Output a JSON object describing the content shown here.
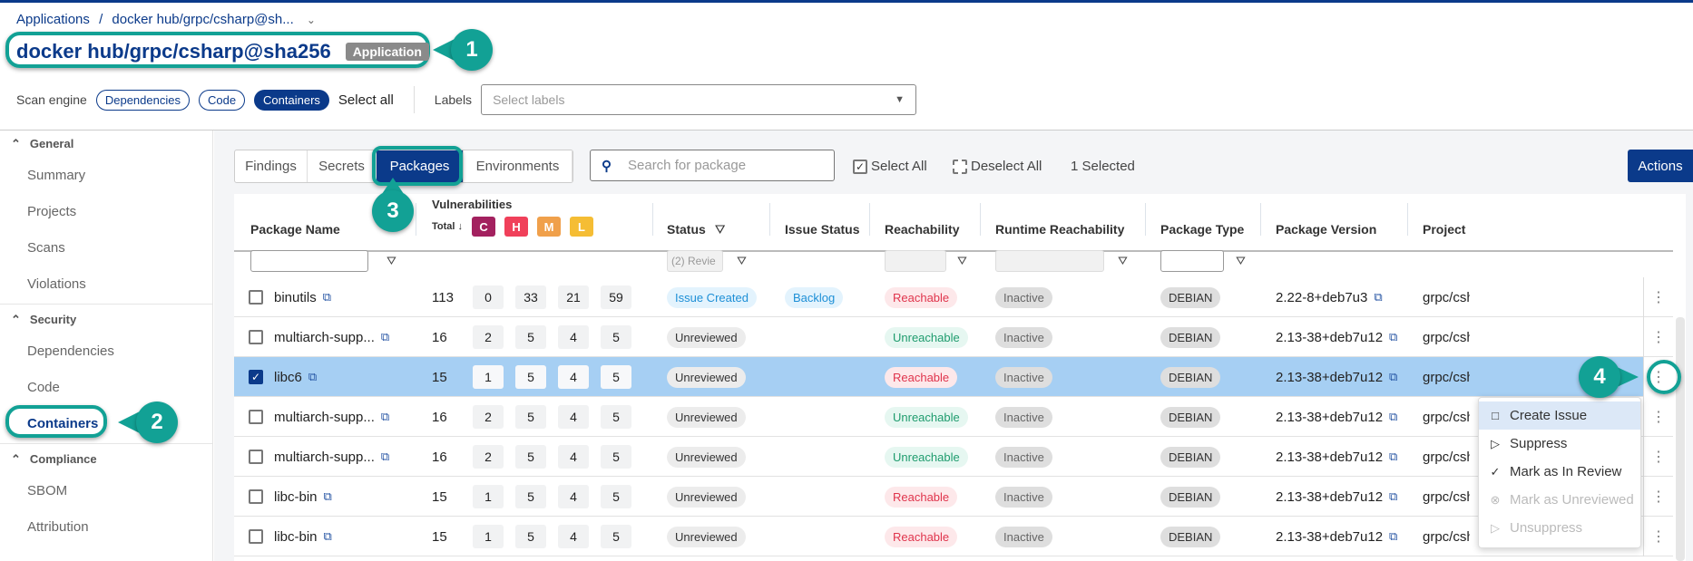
{
  "breadcrumb": {
    "root": "Applications",
    "sep": "/",
    "current": "docker hub/grpc/csharp@sh..."
  },
  "title": "docker hub/grpc/csharp@sha256",
  "title_tag": "Application",
  "scan": {
    "label": "Scan engine",
    "chips": [
      "Dependencies",
      "Code",
      "Containers"
    ],
    "active": "Containers",
    "select_all": "Select all",
    "labels_label": "Labels",
    "labels_placeholder": "Select labels"
  },
  "sidebar": [
    {
      "group": "General",
      "items": [
        "Summary",
        "Projects",
        "Scans",
        "Violations"
      ]
    },
    {
      "group": "Security",
      "items": [
        "Dependencies",
        "Code",
        "Containers"
      ]
    },
    {
      "group": "Compliance",
      "items": [
        "SBOM",
        "Attribution"
      ]
    }
  ],
  "sidebar_active": "Containers",
  "tabs": [
    "Findings",
    "Secrets",
    "Packages",
    "Environments"
  ],
  "active_tab": "Packages",
  "search_placeholder": "Search for package",
  "toolbar": {
    "select_all": "Select All",
    "deselect_all": "Deselect All",
    "selected": "1 Selected",
    "actions": "Actions"
  },
  "columns": {
    "name": "Package Name",
    "vuln": "Vulnerabilities",
    "total": "Total ↓",
    "c": "C",
    "h": "H",
    "m": "M",
    "l": "L",
    "status": "Status",
    "issue": "Issue Status",
    "reach": "Reachability",
    "runtime": "Runtime Reachability",
    "type": "Package Type",
    "version": "Package Version",
    "project": "Project"
  },
  "filters": {
    "status": "(2) Revie"
  },
  "severity_colors": {
    "c": "#a3215f",
    "h": "#f0405a",
    "m": "#f0a04b",
    "l": "#f5bd34"
  },
  "rows": [
    {
      "name": "binutils",
      "total": "113",
      "c": "0",
      "h": "33",
      "m": "21",
      "l": "59",
      "status": "Issue Created",
      "issue": "Backlog",
      "reach": "Reachable",
      "runtime": "Inactive",
      "type": "DEBIAN",
      "version": "2.22-8+deb7u3",
      "project": "grpc/csh",
      "checked": false
    },
    {
      "name": "multiarch-supp...",
      "total": "16",
      "c": "2",
      "h": "5",
      "m": "4",
      "l": "5",
      "status": "Unreviewed",
      "issue": "",
      "reach": "Unreachable",
      "runtime": "Inactive",
      "type": "DEBIAN",
      "version": "2.13-38+deb7u12",
      "project": "grpc/csh",
      "checked": false
    },
    {
      "name": "libc6",
      "total": "15",
      "c": "1",
      "h": "5",
      "m": "4",
      "l": "5",
      "status": "Unreviewed",
      "issue": "",
      "reach": "Reachable",
      "runtime": "Inactive",
      "type": "DEBIAN",
      "version": "2.13-38+deb7u12",
      "project": "grpc/csh",
      "checked": true
    },
    {
      "name": "multiarch-supp...",
      "total": "16",
      "c": "2",
      "h": "5",
      "m": "4",
      "l": "5",
      "status": "Unreviewed",
      "issue": "",
      "reach": "Unreachable",
      "runtime": "Inactive",
      "type": "DEBIAN",
      "version": "2.13-38+deb7u12",
      "project": "grpc/csh",
      "checked": false
    },
    {
      "name": "multiarch-supp...",
      "total": "16",
      "c": "2",
      "h": "5",
      "m": "4",
      "l": "5",
      "status": "Unreviewed",
      "issue": "",
      "reach": "Unreachable",
      "runtime": "Inactive",
      "type": "DEBIAN",
      "version": "2.13-38+deb7u12",
      "project": "grpc/csh",
      "checked": false
    },
    {
      "name": "libc-bin",
      "total": "15",
      "c": "1",
      "h": "5",
      "m": "4",
      "l": "5",
      "status": "Unreviewed",
      "issue": "",
      "reach": "Reachable",
      "runtime": "Inactive",
      "type": "DEBIAN",
      "version": "2.13-38+deb7u12",
      "project": "grpc/csh",
      "checked": false
    },
    {
      "name": "libc-bin",
      "total": "15",
      "c": "1",
      "h": "5",
      "m": "4",
      "l": "5",
      "status": "Unreviewed",
      "issue": "",
      "reach": "Reachable",
      "runtime": "Inactive",
      "type": "DEBIAN",
      "version": "2.13-38+deb7u12",
      "project": "grpc/csh",
      "checked": false
    }
  ],
  "menu": [
    {
      "label": "Create Issue",
      "icon": "bookmark-icon",
      "glyph": "🔖",
      "disabled": false
    },
    {
      "label": "Suppress",
      "icon": "flag-icon",
      "glyph": "⚐",
      "disabled": false
    },
    {
      "label": "Mark as In Review",
      "icon": "check-circle-icon",
      "glyph": "✓",
      "disabled": false
    },
    {
      "label": "Mark as Unreviewed",
      "icon": "x-circle-icon",
      "glyph": "✕",
      "disabled": true
    },
    {
      "label": "Unsuppress",
      "icon": "flag-icon",
      "glyph": "⚐",
      "disabled": true
    }
  ],
  "callouts": [
    "1",
    "2",
    "3",
    "4"
  ]
}
